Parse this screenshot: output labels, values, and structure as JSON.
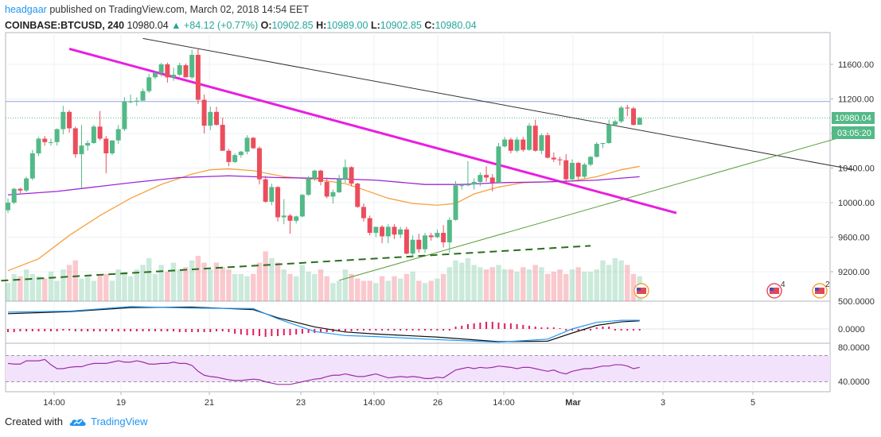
{
  "header": {
    "author": "headgaar",
    "published": "published on TradingView.com, March 02, 2018 14:54 EET",
    "symbol": "COINBASE:BTCUSD, 240",
    "last": "10980.04",
    "change": "▲ +84.12 (+0.77%)",
    "o_label": "O:",
    "o": "10902.85",
    "h_label": "H:",
    "h": "10989.00",
    "l_label": "L:",
    "l": "10902.85",
    "c_label": "C:",
    "c": "10980.04"
  },
  "footer": {
    "created_with": "Created with",
    "brand": "TradingView"
  },
  "colors": {
    "up": "#53b987",
    "down": "#eb4d5c",
    "magenta": "#e91ee0",
    "ma_orange": "#f7a13c",
    "ma_purple": "#9c27d6",
    "rsi_fill": "#f3e2fb"
  },
  "chart_data": {
    "type": "candlestick",
    "title": "COINBASE:BTCUSD, 240",
    "price_ticks": [
      "11600.00",
      "11200.00",
      "10800.00",
      "10400.00",
      "10000.00",
      "9600.00",
      "9200.00"
    ],
    "price_tag": "10980.04",
    "countdown_tag": "03:05:20",
    "macd_ticks": [
      "500.0000",
      "0.0000"
    ],
    "rsi_ticks": [
      "80.0000",
      "40.0000"
    ],
    "x_ticks": [
      "14:00",
      "19",
      "21",
      "23",
      "14:00",
      "26",
      "14:00",
      "Mar",
      "3",
      "5"
    ],
    "events": [
      "4",
      "2"
    ],
    "ohlc": [
      [
        9912,
        10050,
        9880,
        10000
      ],
      [
        10000,
        10170,
        9980,
        10160
      ],
      [
        10160,
        10170,
        10110,
        10140
      ],
      [
        10140,
        10300,
        10120,
        10280
      ],
      [
        10280,
        10610,
        10260,
        10570
      ],
      [
        10570,
        10760,
        10540,
        10740
      ],
      [
        10740,
        10770,
        10660,
        10700
      ],
      [
        10700,
        10740,
        10660,
        10700
      ],
      [
        10700,
        10860,
        10660,
        10850
      ],
      [
        10850,
        11120,
        10790,
        11050
      ],
      [
        11050,
        11070,
        10810,
        10860
      ],
      [
        10860,
        10880,
        10520,
        10560
      ],
      [
        10560,
        10900,
        10170,
        10660
      ],
      [
        10660,
        10720,
        10600,
        10690
      ],
      [
        10690,
        10900,
        10680,
        10880
      ],
      [
        10880,
        11060,
        10720,
        10740
      ],
      [
        10740,
        10770,
        10340,
        10570
      ],
      [
        10570,
        10720,
        10550,
        10720
      ],
      [
        10720,
        10900,
        10680,
        10850
      ],
      [
        10850,
        11220,
        10830,
        11170
      ],
      [
        11170,
        11250,
        11150,
        11170
      ],
      [
        11170,
        11220,
        11120,
        11180
      ],
      [
        11180,
        11320,
        11180,
        11290
      ],
      [
        11290,
        11490,
        11270,
        11450
      ],
      [
        11450,
        11520,
        11430,
        11500
      ],
      [
        11500,
        11620,
        11460,
        11600
      ],
      [
        11600,
        11620,
        11390,
        11450
      ],
      [
        11450,
        11560,
        11410,
        11480
      ],
      [
        11480,
        11620,
        11460,
        11590
      ],
      [
        11590,
        11610,
        11450,
        11450
      ],
      [
        11450,
        11770,
        11430,
        11710
      ],
      [
        11710,
        11780,
        11140,
        11190
      ],
      [
        11190,
        11250,
        10800,
        10890
      ],
      [
        10890,
        11110,
        10840,
        11050
      ],
      [
        11050,
        11110,
        10890,
        10900
      ],
      [
        10900,
        10980,
        10620,
        10600
      ],
      [
        10600,
        10620,
        10420,
        10470
      ],
      [
        10470,
        10570,
        10460,
        10550
      ],
      [
        10550,
        10600,
        10520,
        10590
      ],
      [
        10590,
        10780,
        10560,
        10750
      ],
      [
        10750,
        10760,
        10620,
        10630
      ],
      [
        10630,
        10650,
        10210,
        10270
      ],
      [
        10270,
        10310,
        10000,
        10010
      ],
      [
        10010,
        10220,
        9970,
        10180
      ],
      [
        10180,
        10190,
        9780,
        9830
      ],
      [
        9830,
        10040,
        9750,
        9850
      ],
      [
        9850,
        9870,
        9640,
        9790
      ],
      [
        9790,
        9850,
        9760,
        9840
      ],
      [
        9840,
        10100,
        9830,
        10090
      ],
      [
        10090,
        10310,
        10080,
        10280
      ],
      [
        10280,
        10380,
        10250,
        10370
      ],
      [
        10370,
        10380,
        10200,
        10240
      ],
      [
        10240,
        10290,
        10050,
        10070
      ],
      [
        10070,
        10150,
        9990,
        10120
      ],
      [
        10120,
        10320,
        10110,
        10270
      ],
      [
        10270,
        10500,
        10230,
        10410
      ],
      [
        10410,
        10420,
        10190,
        10220
      ],
      [
        10220,
        10230,
        9940,
        9950
      ],
      [
        9950,
        9990,
        9780,
        9820
      ],
      [
        9820,
        9850,
        9620,
        9650
      ],
      [
        9650,
        9720,
        9600,
        9720
      ],
      [
        9720,
        9740,
        9530,
        9610
      ],
      [
        9610,
        9750,
        9530,
        9720
      ],
      [
        9720,
        9750,
        9580,
        9630
      ],
      [
        9630,
        9720,
        9590,
        9690
      ],
      [
        9690,
        9720,
        9400,
        9410
      ],
      [
        9410,
        9620,
        9380,
        9570
      ],
      [
        9570,
        9640,
        9420,
        9460
      ],
      [
        9460,
        9650,
        9420,
        9620
      ],
      [
        9620,
        9650,
        9560,
        9600
      ],
      [
        9600,
        9690,
        9590,
        9650
      ],
      [
        9650,
        9740,
        9480,
        9540
      ],
      [
        9540,
        9830,
        9420,
        9800
      ],
      [
        9800,
        10250,
        9790,
        10200
      ],
      [
        10200,
        10220,
        10150,
        10200
      ],
      [
        10200,
        10480,
        10190,
        10210
      ],
      [
        10210,
        10280,
        10150,
        10240
      ],
      [
        10240,
        10350,
        10190,
        10320
      ],
      [
        10320,
        10420,
        10240,
        10290
      ],
      [
        10290,
        10330,
        10130,
        10230
      ],
      [
        10230,
        10690,
        10220,
        10650
      ],
      [
        10650,
        10760,
        10640,
        10730
      ],
      [
        10730,
        10750,
        10570,
        10600
      ],
      [
        10600,
        10760,
        10580,
        10730
      ],
      [
        10730,
        10760,
        10590,
        10610
      ],
      [
        10610,
        10920,
        10600,
        10890
      ],
      [
        10890,
        10960,
        10590,
        10600
      ],
      [
        10600,
        10800,
        10560,
        10780
      ],
      [
        10780,
        10810,
        10510,
        10520
      ],
      [
        10520,
        10580,
        10470,
        10500
      ],
      [
        10500,
        10530,
        10430,
        10490
      ],
      [
        10490,
        10560,
        10250,
        10270
      ],
      [
        10270,
        10500,
        10240,
        10460
      ],
      [
        10460,
        10470,
        10270,
        10300
      ],
      [
        10300,
        10460,
        10280,
        10440
      ],
      [
        10440,
        10540,
        10420,
        10530
      ],
      [
        10530,
        10700,
        10520,
        10680
      ],
      [
        10680,
        10690,
        10630,
        10690
      ],
      [
        10690,
        10960,
        10680,
        10900
      ],
      [
        10900,
        10960,
        10880,
        10940
      ],
      [
        10940,
        11120,
        10920,
        11100
      ],
      [
        11100,
        11130,
        11000,
        11090
      ],
      [
        11090,
        11110,
        10890,
        10900
      ],
      [
        10900,
        10990,
        10900,
        10980
      ]
    ],
    "ma_orange_pts": [
      [
        0,
        9212
      ],
      [
        5,
        9350
      ],
      [
        10,
        9620
      ],
      [
        15,
        9850
      ],
      [
        20,
        10050
      ],
      [
        25,
        10210
      ],
      [
        30,
        10330
      ],
      [
        33,
        10380
      ],
      [
        36,
        10390
      ],
      [
        40,
        10370
      ],
      [
        45,
        10300
      ],
      [
        50,
        10270
      ],
      [
        55,
        10220
      ],
      [
        58,
        10150
      ],
      [
        62,
        10050
      ],
      [
        66,
        9990
      ],
      [
        70,
        9970
      ],
      [
        73,
        9990
      ],
      [
        76,
        10100
      ],
      [
        80,
        10180
      ],
      [
        84,
        10230
      ],
      [
        88,
        10240
      ],
      [
        92,
        10250
      ],
      [
        96,
        10300
      ],
      [
        100,
        10380
      ],
      [
        103,
        10420
      ]
    ],
    "ma_purple_pts": [
      [
        0,
        10090
      ],
      [
        8,
        10130
      ],
      [
        14,
        10180
      ],
      [
        20,
        10230
      ],
      [
        28,
        10290
      ],
      [
        36,
        10310
      ],
      [
        44,
        10290
      ],
      [
        52,
        10280
      ],
      [
        60,
        10260
      ],
      [
        68,
        10210
      ],
      [
        74,
        10210
      ],
      [
        80,
        10230
      ],
      [
        88,
        10240
      ],
      [
        96,
        10260
      ],
      [
        103,
        10300
      ]
    ],
    "magenta_line": [
      [
        10,
        11780
      ],
      [
        109,
        9880
      ]
    ],
    "black_line": [
      [
        22,
        11900
      ],
      [
        138,
        10380
      ]
    ],
    "green_line": [
      [
        54,
        9100
      ],
      [
        138,
        10800
      ]
    ],
    "dashed_green": [
      [
        -5,
        9080
      ],
      [
        95,
        9500
      ]
    ],
    "horizontal_line": 11170,
    "dotted_line": 10980,
    "volume": [
      40,
      60,
      55,
      70,
      60,
      55,
      50,
      65,
      45,
      70,
      80,
      90,
      50,
      55,
      45,
      60,
      60,
      45,
      70,
      65,
      55,
      70,
      80,
      95,
      60,
      80,
      65,
      85,
      70,
      75,
      90,
      100,
      85,
      70,
      85,
      75,
      70,
      60,
      60,
      55,
      60,
      85,
      110,
      95,
      85,
      70,
      60,
      55,
      80,
      65,
      60,
      70,
      55,
      40,
      45,
      70,
      60,
      50,
      45,
      45,
      40,
      55,
      45,
      55,
      50,
      60,
      65,
      45,
      40,
      45,
      50,
      60,
      75,
      90,
      85,
      95,
      80,
      75,
      70,
      75,
      80,
      70,
      70,
      65,
      75,
      70,
      80,
      75,
      60,
      65,
      70,
      60,
      70,
      75,
      65,
      65,
      70,
      90,
      80,
      95,
      90,
      80,
      60,
      55
    ],
    "rsi": [
      68,
      67,
      67,
      72,
      72,
      72,
      74,
      66,
      60,
      60,
      62,
      63,
      63,
      66,
      68,
      68,
      68,
      70,
      72,
      70,
      70,
      72,
      70,
      67,
      67,
      68,
      68,
      70,
      68,
      68,
      65,
      56,
      50,
      48,
      47,
      45,
      43,
      42,
      42,
      43,
      44,
      43,
      40,
      38,
      36,
      36,
      36,
      38,
      40,
      42,
      44,
      45,
      48,
      50,
      50,
      52,
      50,
      48,
      48,
      50,
      52,
      49,
      46,
      47,
      48,
      47,
      48,
      47,
      45,
      45,
      47,
      46,
      52,
      58,
      60,
      62,
      60,
      62,
      61,
      62,
      64,
      63,
      62,
      60,
      62,
      62,
      60,
      58,
      56,
      58,
      54,
      52,
      56,
      58,
      60,
      60,
      62,
      64,
      64,
      66,
      66,
      64,
      60,
      62
    ],
    "macd_line_pts": [
      [
        0,
        330
      ],
      [
        10,
        350
      ],
      [
        20,
        440
      ],
      [
        30,
        410
      ],
      [
        40,
        400
      ],
      [
        44,
        200
      ],
      [
        50,
        -50
      ],
      [
        55,
        -130
      ],
      [
        60,
        -150
      ],
      [
        70,
        -210
      ],
      [
        80,
        -260
      ],
      [
        88,
        -200
      ],
      [
        92,
        0
      ],
      [
        96,
        130
      ],
      [
        100,
        170
      ],
      [
        103,
        170
      ]
    ],
    "signal_line_pts": [
      [
        0,
        300
      ],
      [
        10,
        340
      ],
      [
        20,
        420
      ],
      [
        30,
        430
      ],
      [
        40,
        380
      ],
      [
        44,
        220
      ],
      [
        50,
        40
      ],
      [
        55,
        -60
      ],
      [
        60,
        -100
      ],
      [
        70,
        -160
      ],
      [
        80,
        -250
      ],
      [
        88,
        -240
      ],
      [
        92,
        -80
      ],
      [
        96,
        70
      ],
      [
        100,
        140
      ],
      [
        103,
        160
      ]
    ],
    "macd_hist": [
      -4,
      -4,
      -3,
      -3,
      -3,
      -3,
      -3,
      -3,
      -3,
      -2,
      -2,
      -3,
      -3,
      -3,
      -3,
      -3,
      -3,
      -3,
      -3,
      -3,
      -3,
      -3,
      -3,
      -3,
      -3,
      -3,
      -3,
      -3,
      -4,
      -4,
      -4,
      -4,
      -4,
      -4,
      -3,
      -3,
      -4,
      -6,
      -7,
      -8,
      -8,
      -9,
      -10,
      -9,
      -9,
      -8,
      -8,
      -7,
      -6,
      -5,
      -5,
      -4,
      -4,
      -4,
      -3,
      -3,
      -3,
      -2,
      -2,
      -2,
      -2,
      -2,
      -2,
      -2,
      -2,
      -2,
      -2,
      -2,
      -2,
      -2,
      -2,
      -2,
      -2,
      3,
      4,
      6,
      7,
      8,
      9,
      9,
      8,
      7,
      7,
      6,
      5,
      4,
      3,
      2,
      2,
      2,
      1,
      -2,
      -2,
      -2,
      -2,
      -2,
      2,
      3,
      3,
      -2,
      -2,
      -2,
      -2,
      -2
    ]
  }
}
